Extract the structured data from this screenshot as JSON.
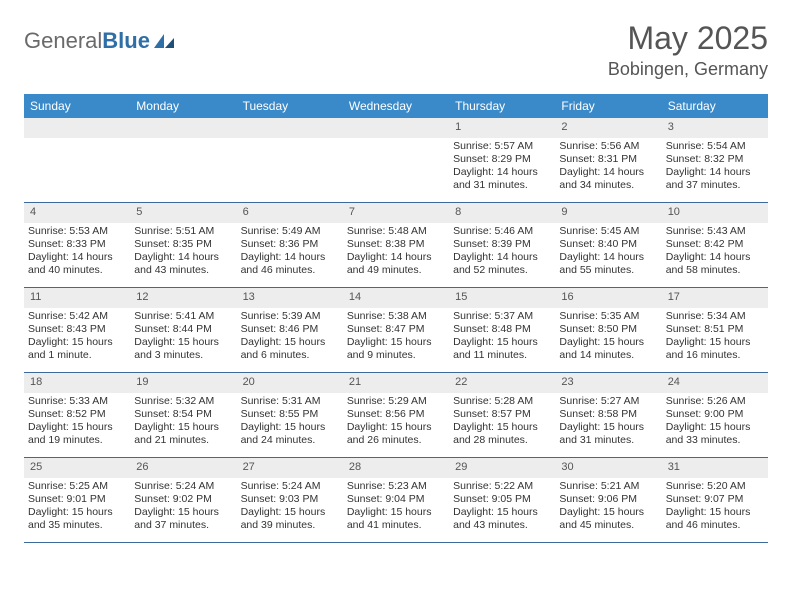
{
  "brand": {
    "part1": "General",
    "part2": "Blue"
  },
  "title": "May 2025",
  "location": "Bobingen, Germany",
  "colors": {
    "header_bg": "#3a89c9",
    "header_text": "#ffffff",
    "daynum_bg": "#ededed",
    "daynum_text": "#555555",
    "week_divider": "#3a6b9a",
    "body_text": "#333333",
    "title_text": "#555555",
    "logo_gray": "#6a6a6a",
    "logo_blue": "#2f6fa8",
    "page_bg": "#ffffff"
  },
  "day_names": [
    "Sunday",
    "Monday",
    "Tuesday",
    "Wednesday",
    "Thursday",
    "Friday",
    "Saturday"
  ],
  "weeks": [
    [
      {
        "empty": true
      },
      {
        "empty": true
      },
      {
        "empty": true
      },
      {
        "empty": true
      },
      {
        "n": "1",
        "sunrise": "Sunrise: 5:57 AM",
        "sunset": "Sunset: 8:29 PM",
        "d1": "Daylight: 14 hours",
        "d2": "and 31 minutes."
      },
      {
        "n": "2",
        "sunrise": "Sunrise: 5:56 AM",
        "sunset": "Sunset: 8:31 PM",
        "d1": "Daylight: 14 hours",
        "d2": "and 34 minutes."
      },
      {
        "n": "3",
        "sunrise": "Sunrise: 5:54 AM",
        "sunset": "Sunset: 8:32 PM",
        "d1": "Daylight: 14 hours",
        "d2": "and 37 minutes."
      }
    ],
    [
      {
        "n": "4",
        "sunrise": "Sunrise: 5:53 AM",
        "sunset": "Sunset: 8:33 PM",
        "d1": "Daylight: 14 hours",
        "d2": "and 40 minutes."
      },
      {
        "n": "5",
        "sunrise": "Sunrise: 5:51 AM",
        "sunset": "Sunset: 8:35 PM",
        "d1": "Daylight: 14 hours",
        "d2": "and 43 minutes."
      },
      {
        "n": "6",
        "sunrise": "Sunrise: 5:49 AM",
        "sunset": "Sunset: 8:36 PM",
        "d1": "Daylight: 14 hours",
        "d2": "and 46 minutes."
      },
      {
        "n": "7",
        "sunrise": "Sunrise: 5:48 AM",
        "sunset": "Sunset: 8:38 PM",
        "d1": "Daylight: 14 hours",
        "d2": "and 49 minutes."
      },
      {
        "n": "8",
        "sunrise": "Sunrise: 5:46 AM",
        "sunset": "Sunset: 8:39 PM",
        "d1": "Daylight: 14 hours",
        "d2": "and 52 minutes."
      },
      {
        "n": "9",
        "sunrise": "Sunrise: 5:45 AM",
        "sunset": "Sunset: 8:40 PM",
        "d1": "Daylight: 14 hours",
        "d2": "and 55 minutes."
      },
      {
        "n": "10",
        "sunrise": "Sunrise: 5:43 AM",
        "sunset": "Sunset: 8:42 PM",
        "d1": "Daylight: 14 hours",
        "d2": "and 58 minutes."
      }
    ],
    [
      {
        "n": "11",
        "sunrise": "Sunrise: 5:42 AM",
        "sunset": "Sunset: 8:43 PM",
        "d1": "Daylight: 15 hours",
        "d2": "and 1 minute."
      },
      {
        "n": "12",
        "sunrise": "Sunrise: 5:41 AM",
        "sunset": "Sunset: 8:44 PM",
        "d1": "Daylight: 15 hours",
        "d2": "and 3 minutes."
      },
      {
        "n": "13",
        "sunrise": "Sunrise: 5:39 AM",
        "sunset": "Sunset: 8:46 PM",
        "d1": "Daylight: 15 hours",
        "d2": "and 6 minutes."
      },
      {
        "n": "14",
        "sunrise": "Sunrise: 5:38 AM",
        "sunset": "Sunset: 8:47 PM",
        "d1": "Daylight: 15 hours",
        "d2": "and 9 minutes."
      },
      {
        "n": "15",
        "sunrise": "Sunrise: 5:37 AM",
        "sunset": "Sunset: 8:48 PM",
        "d1": "Daylight: 15 hours",
        "d2": "and 11 minutes."
      },
      {
        "n": "16",
        "sunrise": "Sunrise: 5:35 AM",
        "sunset": "Sunset: 8:50 PM",
        "d1": "Daylight: 15 hours",
        "d2": "and 14 minutes."
      },
      {
        "n": "17",
        "sunrise": "Sunrise: 5:34 AM",
        "sunset": "Sunset: 8:51 PM",
        "d1": "Daylight: 15 hours",
        "d2": "and 16 minutes."
      }
    ],
    [
      {
        "n": "18",
        "sunrise": "Sunrise: 5:33 AM",
        "sunset": "Sunset: 8:52 PM",
        "d1": "Daylight: 15 hours",
        "d2": "and 19 minutes."
      },
      {
        "n": "19",
        "sunrise": "Sunrise: 5:32 AM",
        "sunset": "Sunset: 8:54 PM",
        "d1": "Daylight: 15 hours",
        "d2": "and 21 minutes."
      },
      {
        "n": "20",
        "sunrise": "Sunrise: 5:31 AM",
        "sunset": "Sunset: 8:55 PM",
        "d1": "Daylight: 15 hours",
        "d2": "and 24 minutes."
      },
      {
        "n": "21",
        "sunrise": "Sunrise: 5:29 AM",
        "sunset": "Sunset: 8:56 PM",
        "d1": "Daylight: 15 hours",
        "d2": "and 26 minutes."
      },
      {
        "n": "22",
        "sunrise": "Sunrise: 5:28 AM",
        "sunset": "Sunset: 8:57 PM",
        "d1": "Daylight: 15 hours",
        "d2": "and 28 minutes."
      },
      {
        "n": "23",
        "sunrise": "Sunrise: 5:27 AM",
        "sunset": "Sunset: 8:58 PM",
        "d1": "Daylight: 15 hours",
        "d2": "and 31 minutes."
      },
      {
        "n": "24",
        "sunrise": "Sunrise: 5:26 AM",
        "sunset": "Sunset: 9:00 PM",
        "d1": "Daylight: 15 hours",
        "d2": "and 33 minutes."
      }
    ],
    [
      {
        "n": "25",
        "sunrise": "Sunrise: 5:25 AM",
        "sunset": "Sunset: 9:01 PM",
        "d1": "Daylight: 15 hours",
        "d2": "and 35 minutes."
      },
      {
        "n": "26",
        "sunrise": "Sunrise: 5:24 AM",
        "sunset": "Sunset: 9:02 PM",
        "d1": "Daylight: 15 hours",
        "d2": "and 37 minutes."
      },
      {
        "n": "27",
        "sunrise": "Sunrise: 5:24 AM",
        "sunset": "Sunset: 9:03 PM",
        "d1": "Daylight: 15 hours",
        "d2": "and 39 minutes."
      },
      {
        "n": "28",
        "sunrise": "Sunrise: 5:23 AM",
        "sunset": "Sunset: 9:04 PM",
        "d1": "Daylight: 15 hours",
        "d2": "and 41 minutes."
      },
      {
        "n": "29",
        "sunrise": "Sunrise: 5:22 AM",
        "sunset": "Sunset: 9:05 PM",
        "d1": "Daylight: 15 hours",
        "d2": "and 43 minutes."
      },
      {
        "n": "30",
        "sunrise": "Sunrise: 5:21 AM",
        "sunset": "Sunset: 9:06 PM",
        "d1": "Daylight: 15 hours",
        "d2": "and 45 minutes."
      },
      {
        "n": "31",
        "sunrise": "Sunrise: 5:20 AM",
        "sunset": "Sunset: 9:07 PM",
        "d1": "Daylight: 15 hours",
        "d2": "and 46 minutes."
      }
    ]
  ]
}
